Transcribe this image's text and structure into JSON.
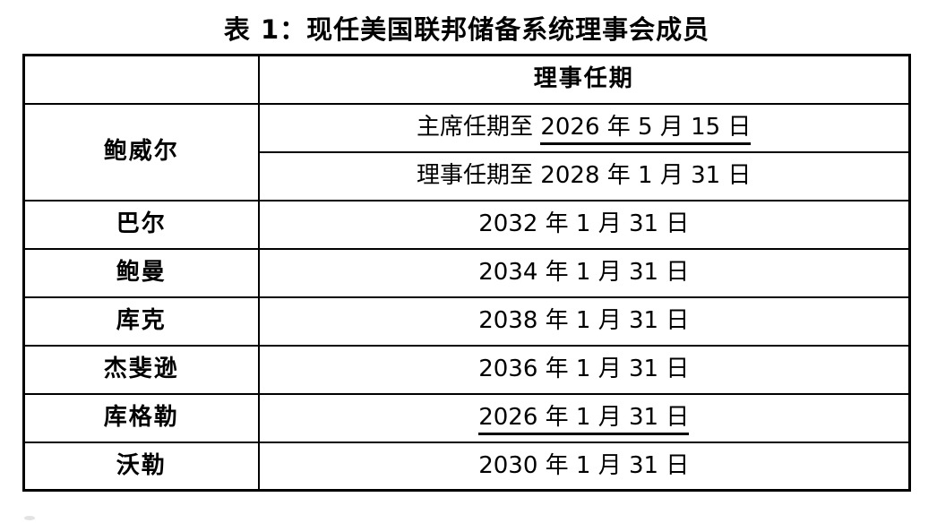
{
  "title": "表 1：现任美国联邦储备系统理事会成员",
  "table": {
    "header": {
      "name_col": "",
      "term_col": "理事任期"
    },
    "powell": {
      "name": "鲍威尔",
      "chair_term_prefix": "主席任期至 ",
      "chair_term_date": "2026 年 5 月 15 日",
      "board_term": "理事任期至 2028 年 1 月 31 日"
    },
    "rows": [
      {
        "name": "巴尔",
        "term": "2032 年 1 月 31 日"
      },
      {
        "name": "鲍曼",
        "term": "2034 年 1 月 31 日"
      },
      {
        "name": "库克",
        "term": "2038 年 1 月 31 日"
      },
      {
        "name": "杰斐逊",
        "term": "2036 年 1 月 31 日"
      },
      {
        "name": "库格勒",
        "term": "2026 年 1 月 31 日"
      },
      {
        "name": "沃勒",
        "term": "2030 年 1 月 31 日"
      }
    ],
    "colors": {
      "border": "#000000",
      "text": "#000000",
      "background": "#ffffff"
    }
  }
}
